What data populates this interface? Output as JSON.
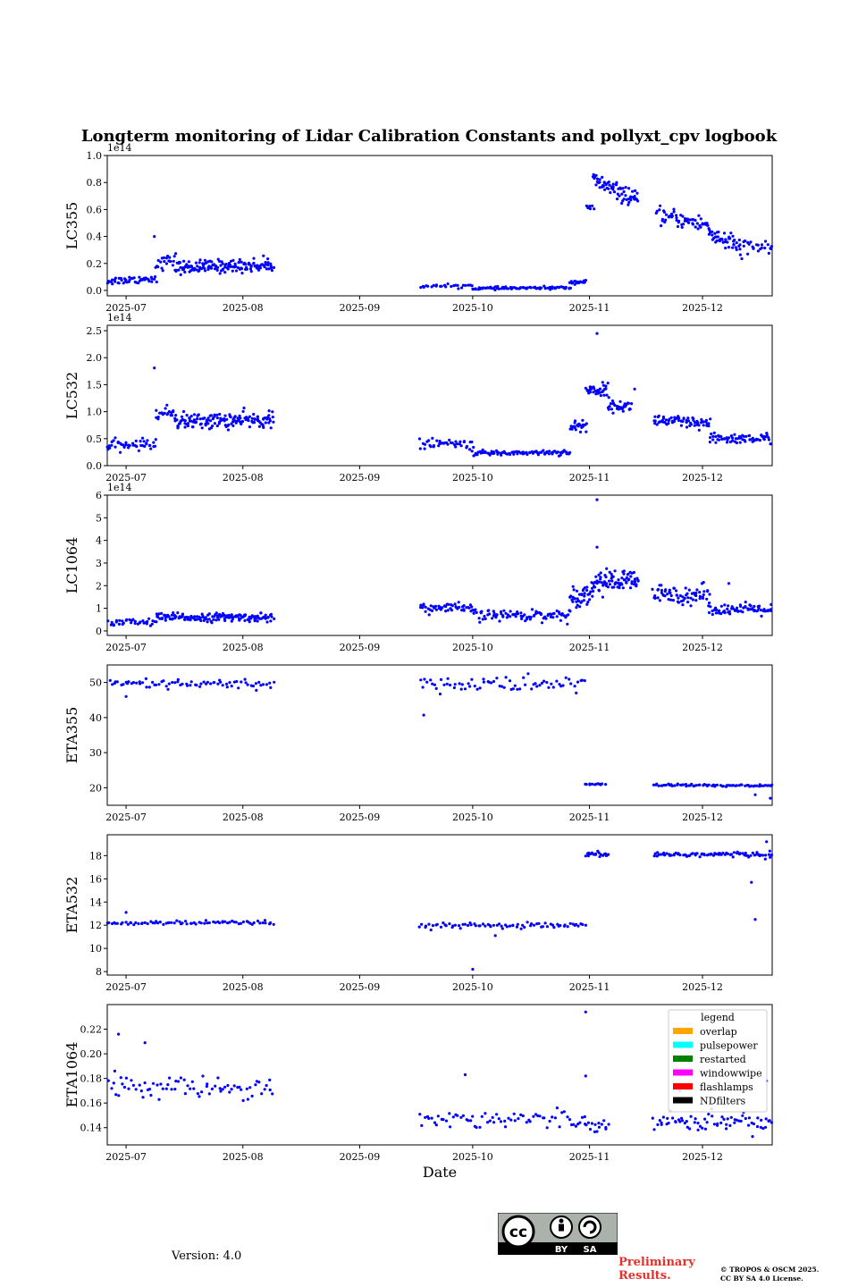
{
  "figure": {
    "title": "Longterm monitoring of Lidar Calibration Constants and pollyxt_cpv logbook",
    "xlabel": "Date",
    "version_text": "Version: 4.0",
    "preliminary_line1": "Preliminary",
    "preliminary_line2": "Results.",
    "copyright_line1": "© TROPOS & OSCM 2025.",
    "copyright_line2": "CC BY SA 4.0 License.",
    "license_badge": {
      "label_by": "BY",
      "label_sa": "SA",
      "icon": "cc-by-sa-icon"
    },
    "point_color": "#0000ff"
  },
  "chart_data": [
    {
      "type": "scatter",
      "ylabel": "LC355",
      "scale_label": "1e14",
      "ylim": [
        -0.04,
        1.0
      ],
      "yticks": [
        "0.0",
        "0.2",
        "0.4",
        "0.6",
        "0.8",
        "1.0"
      ],
      "ytick_values": [
        0.0,
        0.2,
        0.4,
        0.6,
        0.8,
        1.0
      ],
      "xticks": [
        "2025-07",
        "2025-08",
        "2025-09",
        "2025-10",
        "2025-11",
        "2025-12"
      ],
      "xlim_days": [
        -5,
        171.5
      ],
      "segments": [
        {
          "x": [
            -5,
            8
          ],
          "base": 0.07,
          "amp": 0.02,
          "noise": 0.025,
          "count": 45
        },
        {
          "x": [
            8,
            13
          ],
          "base": 0.19,
          "amp": 0.04,
          "noise": 0.04,
          "count": 20
        },
        {
          "x": [
            13,
            39
          ],
          "base": 0.17,
          "amp": 0.02,
          "noise": 0.04,
          "count": 150
        },
        {
          "x": [
            78,
            92
          ],
          "base": 0.03,
          "amp": 0.005,
          "noise": 0.01,
          "count": 25
        },
        {
          "x": [
            92,
            118
          ],
          "base": 0.015,
          "amp": 0.005,
          "noise": 0.008,
          "count": 80
        },
        {
          "x": [
            118,
            122
          ],
          "base": 0.06,
          "amp": 0.005,
          "noise": 0.01,
          "count": 20
        },
        {
          "x": [
            122,
            124
          ],
          "base": 0.6,
          "amp": 0.02,
          "noise": 0.03,
          "count": 6
        },
        {
          "x": [
            124,
            136
          ],
          "base": 0.82,
          "amp": -0.16,
          "noise": 0.05,
          "count": 70
        },
        {
          "x": [
            141,
            155
          ],
          "base": 0.56,
          "amp": -0.08,
          "noise": 0.05,
          "count": 60
        },
        {
          "x": [
            155,
            163
          ],
          "base": 0.42,
          "amp": -0.1,
          "noise": 0.06,
          "count": 45
        },
        {
          "x": [
            163,
            172
          ],
          "base": 0.32,
          "amp": 0.0,
          "noise": 0.05,
          "count": 25
        }
      ],
      "outliers": [
        {
          "x": 7.5,
          "y": 0.4
        },
        {
          "x": 165,
          "y": 0.27
        }
      ]
    },
    {
      "type": "scatter",
      "ylabel": "LC532",
      "scale_label": "1e14",
      "ylim": [
        0.0,
        2.6
      ],
      "yticks": [
        "0.0",
        "0.5",
        "1.0",
        "1.5",
        "2.0",
        "2.5"
      ],
      "ytick_values": [
        0.0,
        0.5,
        1.0,
        1.5,
        2.0,
        2.5
      ],
      "xticks": [
        "2025-07",
        "2025-08",
        "2025-09",
        "2025-10",
        "2025-11",
        "2025-12"
      ],
      "xlim_days": [
        -5,
        171.5
      ],
      "segments": [
        {
          "x": [
            -5,
            8
          ],
          "base": 0.36,
          "amp": 0.05,
          "noise": 0.08,
          "count": 45
        },
        {
          "x": [
            8,
            13
          ],
          "base": 0.95,
          "amp": 0.05,
          "noise": 0.1,
          "count": 20
        },
        {
          "x": [
            13,
            39
          ],
          "base": 0.82,
          "amp": 0.03,
          "noise": 0.12,
          "count": 150
        },
        {
          "x": [
            78,
            92
          ],
          "base": 0.4,
          "amp": 0.0,
          "noise": 0.08,
          "count": 40
        },
        {
          "x": [
            92,
            118
          ],
          "base": 0.23,
          "amp": 0.02,
          "noise": 0.04,
          "count": 90
        },
        {
          "x": [
            118,
            122
          ],
          "base": 0.7,
          "amp": 0.05,
          "noise": 0.1,
          "count": 25
        },
        {
          "x": [
            122,
            128
          ],
          "base": 1.4,
          "amp": 0.0,
          "noise": 0.1,
          "count": 35
        },
        {
          "x": [
            128,
            134
          ],
          "base": 1.1,
          "amp": 0.0,
          "noise": 0.08,
          "count": 35
        },
        {
          "x": [
            140,
            155
          ],
          "base": 0.85,
          "amp": -0.1,
          "noise": 0.1,
          "count": 70
        },
        {
          "x": [
            155,
            172
          ],
          "base": 0.5,
          "amp": 0.0,
          "noise": 0.08,
          "count": 70
        }
      ],
      "outliers": [
        {
          "x": 7.5,
          "y": 1.81
        },
        {
          "x": 125,
          "y": 2.45
        },
        {
          "x": 135,
          "y": 1.42
        }
      ]
    },
    {
      "type": "scatter",
      "ylabel": "LC1064",
      "scale_label": "1e14",
      "ylim": [
        -0.2,
        6.0
      ],
      "yticks": [
        "0",
        "1",
        "2",
        "3",
        "4",
        "5",
        "6"
      ],
      "ytick_values": [
        0,
        1,
        2,
        3,
        4,
        5,
        6
      ],
      "xticks": [
        "2025-07",
        "2025-08",
        "2025-09",
        "2025-10",
        "2025-11",
        "2025-12"
      ],
      "xlim_days": [
        -5,
        171.5
      ],
      "segments": [
        {
          "x": [
            -5,
            8
          ],
          "base": 0.35,
          "amp": 0.05,
          "noise": 0.15,
          "count": 35
        },
        {
          "x": [
            8,
            39
          ],
          "base": 0.6,
          "amp": 0.0,
          "noise": 0.15,
          "count": 150
        },
        {
          "x": [
            78,
            92
          ],
          "base": 1.0,
          "amp": 0.0,
          "noise": 0.2,
          "count": 50
        },
        {
          "x": [
            92,
            118
          ],
          "base": 0.7,
          "amp": 0.0,
          "noise": 0.2,
          "count": 90
        },
        {
          "x": [
            118,
            124
          ],
          "base": 1.5,
          "amp": 0.2,
          "noise": 0.4,
          "count": 40
        },
        {
          "x": [
            124,
            136
          ],
          "base": 2.2,
          "amp": 0.0,
          "noise": 0.4,
          "count": 80
        },
        {
          "x": [
            140,
            155
          ],
          "base": 1.6,
          "amp": 0.0,
          "noise": 0.35,
          "count": 70
        },
        {
          "x": [
            155,
            172
          ],
          "base": 0.95,
          "amp": 0.0,
          "noise": 0.2,
          "count": 70
        }
      ],
      "outliers": [
        {
          "x": 125,
          "y": 5.8
        },
        {
          "x": 125,
          "y": 3.7
        },
        {
          "x": 160,
          "y": 2.1
        }
      ]
    },
    {
      "type": "scatter",
      "ylabel": "ETA355",
      "scale_label": "",
      "ylim": [
        15,
        55
      ],
      "yticks": [
        "20",
        "30",
        "40",
        "50"
      ],
      "ytick_values": [
        20,
        30,
        40,
        50
      ],
      "xticks": [
        "2025-07",
        "2025-08",
        "2025-09",
        "2025-10",
        "2025-11",
        "2025-12"
      ],
      "xlim_days": [
        -5,
        171.5
      ],
      "segments": [
        {
          "x": [
            -5,
            39
          ],
          "base": 49.5,
          "amp": 0.0,
          "noise": 1.2,
          "count": 75
        },
        {
          "x": [
            78,
            122
          ],
          "base": 49.5,
          "amp": 0.0,
          "noise": 2.0,
          "count": 70
        },
        {
          "x": [
            122,
            127
          ],
          "base": 21.0,
          "amp": 0.0,
          "noise": 0.2,
          "count": 12
        },
        {
          "x": [
            140,
            172
          ],
          "base": 20.8,
          "amp": -0.3,
          "noise": 0.3,
          "count": 70
        }
      ],
      "outliers": [
        {
          "x": 79,
          "y": 40.7
        },
        {
          "x": 0,
          "y": 46
        },
        {
          "x": 167,
          "y": 18
        },
        {
          "x": 171,
          "y": 17
        }
      ]
    },
    {
      "type": "scatter",
      "ylabel": "ETA532",
      "scale_label": "",
      "ylim": [
        7.7,
        19.8
      ],
      "yticks": [
        "8",
        "10",
        "12",
        "14",
        "16",
        "18"
      ],
      "ytick_values": [
        8,
        10,
        12,
        14,
        16,
        18
      ],
      "xticks": [
        "2025-07",
        "2025-08",
        "2025-09",
        "2025-10",
        "2025-11",
        "2025-12"
      ],
      "xlim_days": [
        -5,
        171.5
      ],
      "segments": [
        {
          "x": [
            -5,
            39
          ],
          "base": 12.2,
          "amp": 0.0,
          "noise": 0.15,
          "count": 75
        },
        {
          "x": [
            78,
            122
          ],
          "base": 11.95,
          "amp": 0.0,
          "noise": 0.2,
          "count": 75
        },
        {
          "x": [
            122,
            128
          ],
          "base": 18.1,
          "amp": 0.0,
          "noise": 0.15,
          "count": 20
        },
        {
          "x": [
            140,
            172
          ],
          "base": 18.1,
          "amp": 0.0,
          "noise": 0.2,
          "count": 80
        }
      ],
      "outliers": [
        {
          "x": 0,
          "y": 13.1
        },
        {
          "x": 92,
          "y": 8.2
        },
        {
          "x": 98,
          "y": 11.1
        },
        {
          "x": 166,
          "y": 15.7
        },
        {
          "x": 167,
          "y": 12.5
        },
        {
          "x": 170,
          "y": 19.2
        }
      ]
    },
    {
      "type": "scatter",
      "ylabel": "ETA1064",
      "scale_label": "",
      "ylim": [
        0.126,
        0.24
      ],
      "yticks": [
        "0.14",
        "0.16",
        "0.18",
        "0.20",
        "0.22"
      ],
      "ytick_values": [
        0.14,
        0.16,
        0.18,
        0.2,
        0.22
      ],
      "xticks": [
        "2025-07",
        "2025-08",
        "2025-09",
        "2025-10",
        "2025-11",
        "2025-12"
      ],
      "xlim_days": [
        -5,
        171.5
      ],
      "segments": [
        {
          "x": [
            -5,
            39
          ],
          "base": 0.173,
          "amp": 0.0,
          "noise": 0.007,
          "count": 75
        },
        {
          "x": [
            78,
            122
          ],
          "base": 0.147,
          "amp": 0.0,
          "noise": 0.006,
          "count": 70
        },
        {
          "x": [
            122,
            128
          ],
          "base": 0.143,
          "amp": 0.0,
          "noise": 0.004,
          "count": 15
        },
        {
          "x": [
            140,
            172
          ],
          "base": 0.145,
          "amp": 0.0,
          "noise": 0.006,
          "count": 70
        }
      ],
      "outliers": [
        {
          "x": -2,
          "y": 0.216
        },
        {
          "x": 5,
          "y": 0.209
        },
        {
          "x": -3,
          "y": 0.186
        },
        {
          "x": 122,
          "y": 0.234
        },
        {
          "x": 122,
          "y": 0.182
        },
        {
          "x": 90,
          "y": 0.183
        },
        {
          "x": 147,
          "y": 0.17
        },
        {
          "x": 170,
          "y": 0.178
        }
      ]
    }
  ],
  "legend": {
    "title": "legend",
    "entries": [
      {
        "label": "overlap",
        "color": "#ffa500"
      },
      {
        "label": "pulsepower",
        "color": "#00ffff"
      },
      {
        "label": "restarted",
        "color": "#008000"
      },
      {
        "label": "windowwipe",
        "color": "#ff00ff"
      },
      {
        "label": "flashlamps",
        "color": "#ff0000"
      },
      {
        "label": "NDfilters",
        "color": "#000000"
      }
    ]
  }
}
